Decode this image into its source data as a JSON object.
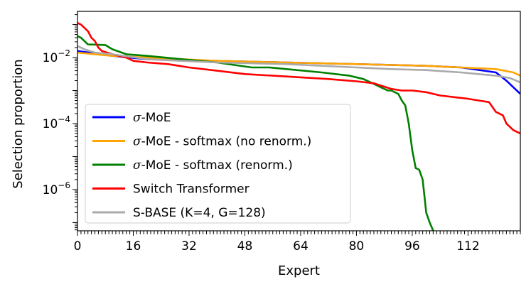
{
  "chart_data": {
    "type": "line",
    "title": "",
    "xlabel": "Expert",
    "ylabel": "Selection proportion",
    "xlim": [
      0,
      127
    ],
    "ylim_log10": [
      -7.25,
      -0.6
    ],
    "yscale": "log",
    "grid": false,
    "legend_position": "lower-left",
    "x_ticks": [
      0,
      16,
      32,
      48,
      64,
      80,
      96,
      112
    ],
    "x_tick_labels": [
      "0",
      "16",
      "32",
      "48",
      "64",
      "80",
      "96",
      "112"
    ],
    "x_minor_ticks_every": 1,
    "y_ticks_log10": [
      -2,
      -4,
      -6
    ],
    "y_tick_labels": [
      {
        "base": "10",
        "exp": "−2"
      },
      {
        "base": "10",
        "exp": "−4"
      },
      {
        "base": "10",
        "exp": "−6"
      }
    ],
    "series": [
      {
        "name": "σ-MoE",
        "label_prefix": "σ",
        "label_suffix": "-MoE",
        "color": "#0000ff",
        "x": [
          0,
          10,
          20,
          40,
          60,
          80,
          100,
          110,
          120,
          123,
          125,
          127
        ],
        "log10": [
          -1.8,
          -1.95,
          -2.05,
          -2.1,
          -2.15,
          -2.2,
          -2.25,
          -2.3,
          -2.45,
          -2.7,
          -2.9,
          -3.1
        ]
      },
      {
        "name": "σ-MoE - softmax (no renorm.)",
        "label_prefix": "σ",
        "label_suffix": "-MoE - softmax (no renorm.)",
        "color": "#ffa500",
        "x": [
          0,
          10,
          20,
          40,
          60,
          80,
          100,
          110,
          120,
          125,
          127
        ],
        "log10": [
          -1.85,
          -1.95,
          -2.0,
          -2.1,
          -2.15,
          -2.2,
          -2.25,
          -2.3,
          -2.35,
          -2.45,
          -2.55
        ]
      },
      {
        "name": "σ-MoE - softmax (renorm.)",
        "label_prefix": "σ",
        "label_suffix": "-MoE - softmax (renorm.)",
        "color": "#008000",
        "x": [
          0,
          1,
          2,
          3,
          8,
          10,
          14,
          20,
          30,
          40,
          50,
          55,
          60,
          70,
          78,
          82,
          85,
          87,
          89,
          90,
          92,
          93,
          94,
          95,
          96,
          97,
          98,
          99,
          100,
          101,
          102
        ],
        "log10": [
          -1.35,
          -1.4,
          -1.5,
          -1.6,
          -1.62,
          -1.75,
          -1.9,
          -1.95,
          -2.05,
          -2.15,
          -2.3,
          -2.3,
          -2.35,
          -2.45,
          -2.55,
          -2.65,
          -2.8,
          -2.9,
          -3.0,
          -3.0,
          -3.1,
          -3.3,
          -3.45,
          -4.0,
          -4.8,
          -5.35,
          -5.4,
          -5.7,
          -6.7,
          -7.0,
          -7.25
        ]
      },
      {
        "name": "Switch Transformer",
        "label_prefix": "",
        "label_suffix": "Switch Transformer",
        "color": "#ff0000",
        "x": [
          0,
          1,
          2,
          3,
          4,
          5,
          6,
          7,
          10,
          14,
          16,
          20,
          26,
          32,
          40,
          48,
          56,
          64,
          72,
          80,
          85,
          87,
          90,
          93,
          96,
          100,
          104,
          108,
          112,
          115,
          118,
          120,
          122,
          123,
          125,
          127
        ],
        "log10": [
          -0.95,
          -1.0,
          -1.1,
          -1.2,
          -1.4,
          -1.5,
          -1.7,
          -1.8,
          -1.9,
          -2.0,
          -2.1,
          -2.15,
          -2.2,
          -2.3,
          -2.4,
          -2.5,
          -2.55,
          -2.6,
          -2.65,
          -2.72,
          -2.78,
          -2.85,
          -2.95,
          -3.0,
          -3.0,
          -3.05,
          -3.15,
          -3.2,
          -3.25,
          -3.3,
          -3.35,
          -3.65,
          -3.75,
          -4.0,
          -4.2,
          -4.3
        ]
      },
      {
        "name": "S-BASE (K=4, G=128)",
        "label_prefix": "",
        "label_suffix": "S-BASE (K=4, G=128)",
        "color": "#aaaaaa",
        "x": [
          0,
          2,
          5,
          10,
          20,
          40,
          60,
          80,
          90,
          100,
          110,
          115,
          120,
          124,
          127
        ],
        "log10": [
          -1.65,
          -1.75,
          -1.85,
          -1.9,
          -2.05,
          -2.15,
          -2.2,
          -2.3,
          -2.35,
          -2.38,
          -2.45,
          -2.5,
          -2.55,
          -2.62,
          -2.75
        ]
      }
    ]
  }
}
